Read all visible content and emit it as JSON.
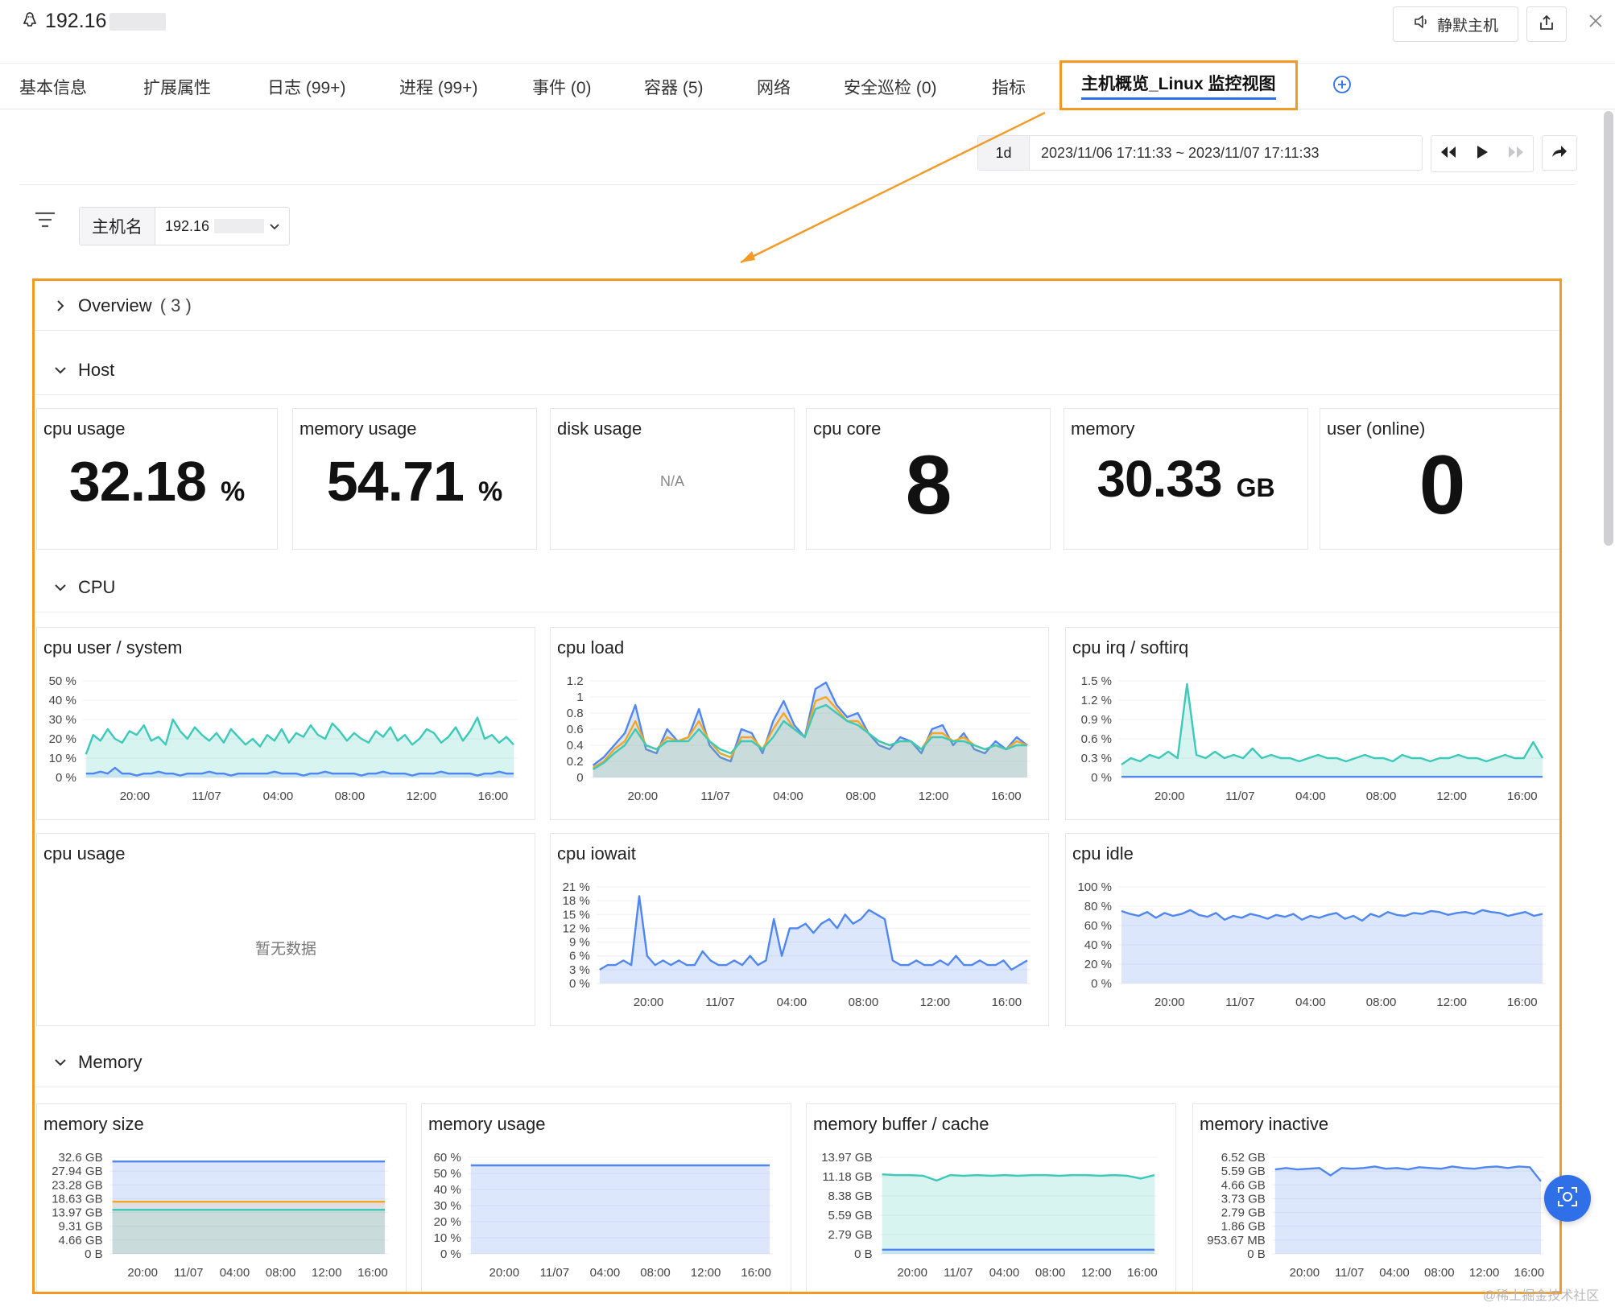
{
  "header": {
    "host_title": "192.16",
    "silence_button": "静默主机"
  },
  "tabs": [
    {
      "label": "基本信息"
    },
    {
      "label": "扩展属性"
    },
    {
      "label": "日志 (99+)"
    },
    {
      "label": "进程 (99+)"
    },
    {
      "label": "事件 (0)"
    },
    {
      "label": "容器 (5)"
    },
    {
      "label": "网络"
    },
    {
      "label": "安全巡检 (0)"
    },
    {
      "label": "指标"
    },
    {
      "label": "主机概览_Linux 监控视图",
      "active": true
    }
  ],
  "toolbar": {
    "time_unit": "1d",
    "time_range": "2023/11/06 17:11:33 ~ 2023/11/07 17:11:33"
  },
  "variables": {
    "label": "主机名",
    "value": "192.16"
  },
  "colors": {
    "highlight": "#f29a25",
    "accent": "#2f6fe8",
    "teal": "#3cc9b7",
    "blue": "#4f86f0",
    "orange": "#f5a623"
  },
  "rows": {
    "overview": {
      "title": "Overview",
      "count": "( 3 )",
      "collapsed": true
    },
    "host": {
      "title": "Host"
    },
    "cpu": {
      "title": "CPU"
    },
    "memory": {
      "title": "Memory"
    }
  },
  "stats": [
    {
      "title": "cpu usage",
      "value": "32.18",
      "unit": "%"
    },
    {
      "title": "memory usage",
      "value": "54.71",
      "unit": "%"
    },
    {
      "title": "disk usage",
      "value": "N/A",
      "unit": ""
    },
    {
      "title": "cpu core",
      "value": "8",
      "unit": ""
    },
    {
      "title": "memory",
      "value": "30.33",
      "unit": "GB"
    },
    {
      "title": "user (online)",
      "value": "0",
      "unit": ""
    }
  ],
  "cpu_usage_empty": {
    "title": "cpu usage",
    "message": "暂无数据"
  },
  "watermark": "@稀土掘金技术社区",
  "chart_data": [
    {
      "id": "cpu_user_system",
      "type": "area",
      "title": "cpu user / system",
      "yticks": [
        "50 %",
        "40 %",
        "30 %",
        "20 %",
        "10 %",
        "0 %"
      ],
      "ylim": [
        0,
        50
      ],
      "xticks": [
        "20:00",
        "11/07",
        "04:00",
        "08:00",
        "12:00",
        "16:00"
      ],
      "series": [
        {
          "color": "#3cc9b7",
          "values": [
            12,
            22,
            19,
            25,
            20,
            18,
            24,
            22,
            27,
            19,
            21,
            17,
            30,
            24,
            20,
            26,
            22,
            19,
            23,
            18,
            25,
            21,
            17,
            20,
            16,
            22,
            19,
            25,
            18,
            23,
            21,
            27,
            22,
            20,
            28,
            24,
            19,
            23,
            20,
            18,
            24,
            21,
            26,
            19,
            22,
            17,
            20,
            25,
            23,
            18,
            21,
            26,
            19,
            24,
            31,
            20,
            22,
            18,
            21,
            17
          ]
        },
        {
          "color": "#4f86f0",
          "values": [
            2,
            2,
            3,
            2,
            5,
            2,
            2,
            1,
            2,
            2,
            3,
            2,
            2,
            1,
            2,
            2,
            2,
            3,
            2,
            2,
            1,
            2,
            2,
            2,
            2,
            2,
            3,
            2,
            2,
            2,
            1,
            2,
            2,
            3,
            2,
            2,
            2,
            2,
            1,
            2,
            2,
            3,
            2,
            2,
            2,
            1,
            2,
            2,
            2,
            3,
            2,
            2,
            2,
            2,
            1,
            2,
            2,
            3,
            2,
            2
          ]
        }
      ]
    },
    {
      "id": "cpu_load",
      "type": "area",
      "title": "cpu load",
      "yticks": [
        "1.2",
        "1",
        "0.8",
        "0.6",
        "0.4",
        "0.2",
        "0"
      ],
      "ylim": [
        0,
        1.2
      ],
      "xticks": [
        "20:00",
        "11/07",
        "04:00",
        "08:00",
        "12:00",
        "16:00"
      ],
      "series": [
        {
          "color": "#4f86f0",
          "values": [
            0.15,
            0.25,
            0.4,
            0.55,
            0.9,
            0.35,
            0.3,
            0.6,
            0.45,
            0.5,
            0.85,
            0.4,
            0.25,
            0.2,
            0.6,
            0.55,
            0.3,
            0.7,
            0.95,
            0.65,
            0.5,
            1.1,
            1.18,
            0.9,
            0.75,
            0.8,
            0.55,
            0.4,
            0.35,
            0.5,
            0.45,
            0.3,
            0.6,
            0.65,
            0.4,
            0.55,
            0.35,
            0.3,
            0.45,
            0.35,
            0.5,
            0.4
          ]
        },
        {
          "color": "#f5a623",
          "values": [
            0.12,
            0.2,
            0.35,
            0.45,
            0.7,
            0.4,
            0.35,
            0.5,
            0.45,
            0.5,
            0.7,
            0.45,
            0.3,
            0.25,
            0.5,
            0.5,
            0.35,
            0.6,
            0.8,
            0.6,
            0.5,
            0.95,
            1.0,
            0.85,
            0.7,
            0.7,
            0.55,
            0.45,
            0.4,
            0.45,
            0.45,
            0.35,
            0.55,
            0.55,
            0.45,
            0.5,
            0.4,
            0.35,
            0.4,
            0.35,
            0.45,
            0.4
          ]
        },
        {
          "color": "#3cc9b7",
          "values": [
            0.1,
            0.18,
            0.3,
            0.4,
            0.6,
            0.4,
            0.35,
            0.45,
            0.45,
            0.45,
            0.6,
            0.45,
            0.35,
            0.3,
            0.45,
            0.45,
            0.35,
            0.5,
            0.7,
            0.6,
            0.5,
            0.85,
            0.9,
            0.8,
            0.7,
            0.65,
            0.55,
            0.45,
            0.4,
            0.45,
            0.45,
            0.35,
            0.5,
            0.5,
            0.45,
            0.45,
            0.4,
            0.35,
            0.4,
            0.35,
            0.4,
            0.4
          ]
        }
      ]
    },
    {
      "id": "cpu_irq_softirq",
      "type": "area",
      "title": "cpu irq / softirq",
      "yticks": [
        "1.5 %",
        "1.2 %",
        "0.9 %",
        "0.6 %",
        "0.3 %",
        "0 %"
      ],
      "ylim": [
        0,
        1.5
      ],
      "xticks": [
        "20:00",
        "11/07",
        "04:00",
        "08:00",
        "12:00",
        "16:00"
      ],
      "series": [
        {
          "color": "#3cc9b7",
          "values": [
            0.2,
            0.3,
            0.25,
            0.35,
            0.3,
            0.4,
            0.3,
            1.45,
            0.35,
            0.3,
            0.4,
            0.3,
            0.35,
            0.3,
            0.45,
            0.3,
            0.35,
            0.3,
            0.3,
            0.25,
            0.3,
            0.35,
            0.3,
            0.3,
            0.25,
            0.3,
            0.35,
            0.3,
            0.3,
            0.25,
            0.35,
            0.3,
            0.3,
            0.25,
            0.3,
            0.3,
            0.35,
            0.3,
            0.3,
            0.25,
            0.3,
            0.35,
            0.3,
            0.3,
            0.55,
            0.3
          ]
        },
        {
          "color": "#4f86f0",
          "values": [
            0.01,
            0.01,
            0.01,
            0.01,
            0.01,
            0.01,
            0.01,
            0.01,
            0.01,
            0.01,
            0.01,
            0.01,
            0.01,
            0.01,
            0.01,
            0.01,
            0.01,
            0.01,
            0.01,
            0.01,
            0.01,
            0.01,
            0.01,
            0.01,
            0.01,
            0.01,
            0.01,
            0.01,
            0.01,
            0.01,
            0.01,
            0.01,
            0.01,
            0.01,
            0.01,
            0.01,
            0.01,
            0.01,
            0.01,
            0.01,
            0.01,
            0.01,
            0.01,
            0.01,
            0.01,
            0.01
          ]
        }
      ]
    },
    {
      "id": "cpu_iowait",
      "type": "area",
      "title": "cpu iowait",
      "yticks": [
        "21 %",
        "18 %",
        "15 %",
        "12 %",
        "9 %",
        "6 %",
        "3 %",
        "0 %"
      ],
      "ylim": [
        0,
        21
      ],
      "xticks": [
        "20:00",
        "11/07",
        "04:00",
        "08:00",
        "12:00",
        "16:00"
      ],
      "series": [
        {
          "color": "#4f86f0",
          "values": [
            3,
            4,
            4,
            5,
            4,
            19,
            6,
            4,
            5,
            4,
            5,
            4,
            4,
            7,
            5,
            4,
            4,
            5,
            4,
            6,
            4,
            5,
            14,
            6,
            12,
            12,
            13,
            11,
            13,
            14,
            12,
            15,
            13,
            14,
            16,
            15,
            14,
            5,
            4,
            4,
            5,
            4,
            4,
            5,
            4,
            6,
            4,
            4,
            5,
            4,
            4,
            5,
            3,
            4,
            5
          ]
        }
      ]
    },
    {
      "id": "cpu_idle",
      "type": "area",
      "title": "cpu idle",
      "yticks": [
        "100 %",
        "80 %",
        "60 %",
        "40 %",
        "20 %",
        "0 %"
      ],
      "ylim": [
        0,
        100
      ],
      "xticks": [
        "20:00",
        "11/07",
        "04:00",
        "08:00",
        "12:00",
        "16:00"
      ],
      "series": [
        {
          "color": "#4f86f0",
          "values": [
            75,
            72,
            70,
            74,
            68,
            73,
            70,
            72,
            76,
            71,
            69,
            73,
            66,
            70,
            68,
            72,
            70,
            67,
            71,
            69,
            72,
            66,
            70,
            68,
            71,
            73,
            67,
            70,
            65,
            72,
            69,
            74,
            71,
            70,
            73,
            72,
            75,
            74,
            71,
            73,
            74,
            72,
            76,
            74,
            73,
            70,
            72,
            74,
            70,
            72
          ]
        }
      ]
    },
    {
      "id": "memory_size",
      "type": "area",
      "title": "memory size",
      "yticks": [
        "32.6 GB",
        "27.94 GB",
        "23.28 GB",
        "18.63 GB",
        "13.97 GB",
        "9.31 GB",
        "4.66 GB",
        "0 B"
      ],
      "ylim": [
        0,
        32.6
      ],
      "xticks": [
        "20:00",
        "11/07",
        "04:00",
        "08:00",
        "12:00",
        "16:00"
      ],
      "series": [
        {
          "color": "#4f86f0",
          "values": [
            31.2,
            31.2,
            31.2,
            31.2,
            31.2,
            31.2,
            31.2,
            31.2,
            31.2,
            31.2
          ]
        },
        {
          "color": "#f5a623",
          "values": [
            17.6,
            17.6,
            17.6,
            17.6,
            17.6,
            17.6,
            17.6,
            17.6,
            17.6,
            17.6
          ]
        },
        {
          "color": "#3cc9b7",
          "values": [
            14.9,
            14.9,
            14.9,
            14.9,
            14.9,
            14.9,
            14.9,
            14.9,
            14.9,
            14.9
          ]
        }
      ]
    },
    {
      "id": "memory_usage",
      "type": "area",
      "title": "memory usage",
      "yticks": [
        "60 %",
        "50 %",
        "40 %",
        "30 %",
        "20 %",
        "10 %",
        "0 %"
      ],
      "ylim": [
        0,
        60
      ],
      "xticks": [
        "20:00",
        "11/07",
        "04:00",
        "08:00",
        "12:00",
        "16:00"
      ],
      "series": [
        {
          "color": "#4f86f0",
          "values": [
            55,
            55,
            55,
            55,
            55,
            55,
            55,
            55,
            55,
            55
          ]
        }
      ]
    },
    {
      "id": "memory_buffer_cache",
      "type": "area",
      "title": "memory buffer / cache",
      "yticks": [
        "13.97 GB",
        "11.18 GB",
        "8.38 GB",
        "5.59 GB",
        "2.79 GB",
        "0 B"
      ],
      "ylim": [
        0,
        13.97
      ],
      "xticks": [
        "20:00",
        "11/07",
        "04:00",
        "08:00",
        "12:00",
        "16:00"
      ],
      "series": [
        {
          "color": "#3cc9b7",
          "values": [
            11.5,
            11.4,
            11.4,
            11.3,
            10.6,
            11.4,
            11.3,
            11.4,
            11.3,
            11.4,
            11.3,
            11.4,
            11.4,
            11.3,
            11.4,
            11.4,
            11.3,
            11.4,
            11.3,
            10.9,
            11.4
          ]
        },
        {
          "color": "#4f86f0",
          "values": [
            0.6,
            0.6,
            0.6,
            0.6,
            0.6,
            0.6,
            0.6,
            0.6,
            0.6,
            0.6,
            0.6,
            0.6,
            0.6,
            0.6,
            0.6,
            0.6,
            0.6,
            0.6,
            0.6,
            0.6,
            0.6
          ]
        }
      ]
    },
    {
      "id": "memory_inactive",
      "type": "area",
      "title": "memory inactive",
      "yticks": [
        "6.52 GB",
        "5.59 GB",
        "4.66 GB",
        "3.73 GB",
        "2.79 GB",
        "1.86 GB",
        "953.67 MB",
        "0 B"
      ],
      "ylim": [
        0,
        6.52
      ],
      "xticks": [
        "20:00",
        "11/07",
        "04:00",
        "08:00",
        "12:00",
        "16:00"
      ],
      "series": [
        {
          "color": "#4f86f0",
          "values": [
            5.7,
            5.8,
            5.7,
            5.75,
            5.8,
            5.3,
            5.8,
            5.75,
            5.8,
            5.9,
            5.75,
            5.8,
            5.7,
            5.85,
            5.8,
            5.75,
            5.9,
            5.8,
            5.75,
            5.85,
            5.9,
            5.8,
            5.9,
            5.85,
            4.9
          ]
        }
      ]
    }
  ]
}
